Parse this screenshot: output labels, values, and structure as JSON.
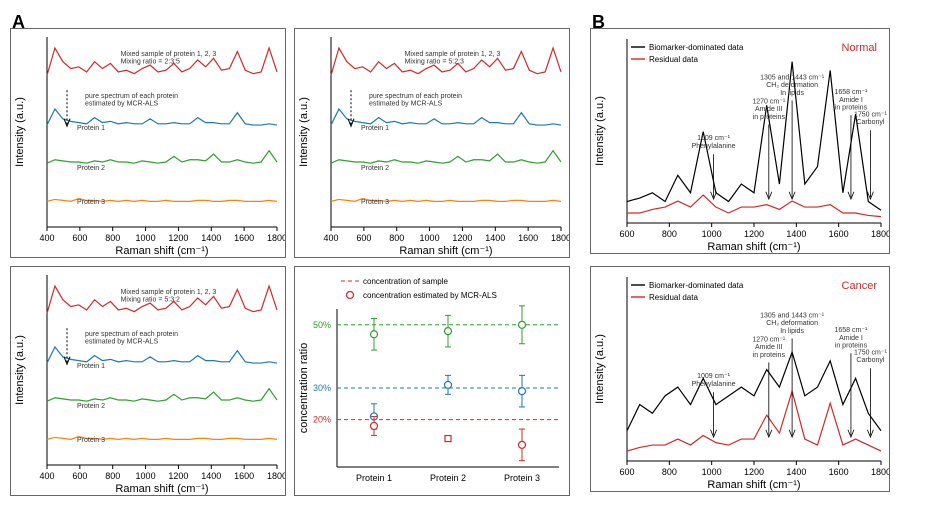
{
  "panelA": {
    "label": "A",
    "xlabel": "Raman shift (cm⁻¹)",
    "ylabel": "Intensity (a.u.)",
    "xlim": [
      400,
      1800
    ],
    "xticks": [
      400,
      600,
      800,
      1000,
      1200,
      1400,
      1600,
      1800
    ],
    "annot_pure": "pure spectrum of each protein\nestimated by MCR-ALS",
    "colors": {
      "mixed": "#d62728",
      "p1": "#1f77b4",
      "p2": "#2ca02c",
      "p3": "#ff7f0e"
    },
    "labels": {
      "p1": "Protein 1",
      "p2": "Protein 2",
      "p3": "Protein 3"
    },
    "subplots": [
      {
        "ratio_text": "Mixed sample of protein 1, 2, 3\nMixing ratio = 2:3:5"
      },
      {
        "ratio_text": "Mixed sample of protein 1, 2, 3\nMixing ratio = 5:2:3"
      },
      {
        "ratio_text": "Mixed sample of protein 1, 2, 3\nMixing ratio = 5:3:2"
      }
    ],
    "spectrum_mixed": [
      0.1,
      0.9,
      0.5,
      0.3,
      0.35,
      0.2,
      0.5,
      0.3,
      0.45,
      0.2,
      0.25,
      0.15,
      0.3,
      0.4,
      0.2,
      0.25,
      0.45,
      0.2,
      0.3,
      0.55,
      0.35,
      0.6,
      0.25,
      0.3,
      0.8,
      0.25,
      0.15,
      0.2,
      0.9,
      0.2
    ],
    "spectrum_p1": [
      0.05,
      0.7,
      0.3,
      0.2,
      0.15,
      0.1,
      0.35,
      0.15,
      0.2,
      0.1,
      0.15,
      0.1,
      0.1,
      0.3,
      0.1,
      0.1,
      0.15,
      0.1,
      0.1,
      0.35,
      0.15,
      0.15,
      0.1,
      0.1,
      0.55,
      0.1,
      0.05,
      0.05,
      0.1,
      0.05
    ],
    "spectrum_p2": [
      0.05,
      0.2,
      0.15,
      0.1,
      0.1,
      0.05,
      0.15,
      0.1,
      0.2,
      0.1,
      0.1,
      0.05,
      0.15,
      0.1,
      0.05,
      0.1,
      0.35,
      0.1,
      0.2,
      0.2,
      0.15,
      0.45,
      0.1,
      0.1,
      0.2,
      0.1,
      0.05,
      0.1,
      0.6,
      0.1
    ],
    "spectrum_p3": [
      0.05,
      0.15,
      0.1,
      0.05,
      0.2,
      0.1,
      0.1,
      0.05,
      0.1,
      0.05,
      0.1,
      0.05,
      0.1,
      0.05,
      0.05,
      0.1,
      0.05,
      0.05,
      0.05,
      0.1,
      0.1,
      0.05,
      0.05,
      0.1,
      0.1,
      0.05,
      0.05,
      0.05,
      0.1,
      0.05
    ],
    "concentration": {
      "ylabel": "concentration ratio",
      "xlabels": [
        "Protein 1",
        "Protein 2",
        "Protein 3"
      ],
      "legend_sample": "concentration of sample",
      "legend_est": "concentration estimated by MCR-ALS",
      "lines": [
        {
          "y": 50,
          "label": "50%",
          "color": "#2ca02c"
        },
        {
          "y": 30,
          "label": "30%",
          "color": "#1f77b4"
        },
        {
          "y": 20,
          "label": "20%",
          "color": "#d62728"
        }
      ],
      "points": [
        {
          "x": 1,
          "y": 47,
          "err": 5,
          "color": "#2ca02c"
        },
        {
          "x": 2,
          "y": 48,
          "err": 5,
          "color": "#2ca02c"
        },
        {
          "x": 3,
          "y": 50,
          "err": 6,
          "color": "#2ca02c"
        },
        {
          "x": 1,
          "y": 21,
          "err": 4,
          "color": "#1f77b4"
        },
        {
          "x": 2,
          "y": 31,
          "err": 3,
          "color": "#1f77b4"
        },
        {
          "x": 3,
          "y": 29,
          "err": 5,
          "color": "#1f77b4"
        },
        {
          "x": 1,
          "y": 18,
          "err": 3,
          "color": "#d62728"
        },
        {
          "x": 2,
          "y": 14,
          "err": 0,
          "color": "#d62728",
          "marker": "square"
        },
        {
          "x": 3,
          "y": 12,
          "err": 5,
          "color": "#d62728"
        }
      ]
    }
  },
  "panelB": {
    "label": "B",
    "xlabel": "Raman shift (cm⁻¹)",
    "ylabel": "Intensity (a.u.)",
    "xlim": [
      600,
      1800
    ],
    "xticks": [
      600,
      800,
      1000,
      1200,
      1400,
      1600,
      1800
    ],
    "colors": {
      "bio": "#000000",
      "res": "#d62728"
    },
    "legend_bio": "Biomarker-dominated data",
    "legend_res": "Residual data",
    "annotations": [
      {
        "label": "1009 cm⁻¹\nPhenylalanine",
        "x": 1009
      },
      {
        "label": "1270 cm⁻¹\nAmide III\nin proteins",
        "x": 1270
      },
      {
        "label": "1305 and 1443 cm⁻¹\nCH₂ deformation\nIn lipids",
        "x": 1380
      },
      {
        "label": "1658 cm⁻¹\nAmide I\nin proteins",
        "x": 1658
      },
      {
        "label": "1750 cm⁻¹\nCarbonyl",
        "x": 1750
      }
    ],
    "subplots": [
      {
        "title": "Normal",
        "title_color": "#d62728",
        "bio": [
          0.1,
          0.12,
          0.15,
          0.1,
          0.25,
          0.15,
          0.5,
          0.15,
          0.1,
          0.2,
          0.15,
          0.65,
          0.2,
          0.9,
          0.2,
          0.3,
          0.85,
          0.15,
          0.6,
          0.1,
          0.05
        ],
        "res": [
          0.05,
          0.05,
          0.08,
          0.1,
          0.15,
          0.1,
          0.2,
          0.1,
          0.05,
          0.1,
          0.1,
          0.12,
          0.08,
          0.15,
          0.1,
          0.1,
          0.12,
          0.05,
          0.05,
          0.03,
          0.02
        ]
      },
      {
        "title": "Cancer",
        "title_color": "#d62728",
        "bio": [
          0.15,
          0.3,
          0.25,
          0.35,
          0.4,
          0.3,
          0.45,
          0.3,
          0.35,
          0.4,
          0.35,
          0.5,
          0.4,
          0.6,
          0.35,
          0.4,
          0.55,
          0.3,
          0.45,
          0.25,
          0.15
        ],
        "res": [
          0.05,
          0.08,
          0.1,
          0.1,
          0.15,
          0.1,
          0.18,
          0.12,
          0.1,
          0.15,
          0.15,
          0.35,
          0.2,
          0.55,
          0.15,
          0.1,
          0.45,
          0.1,
          0.15,
          0.1,
          0.05
        ]
      }
    ]
  }
}
